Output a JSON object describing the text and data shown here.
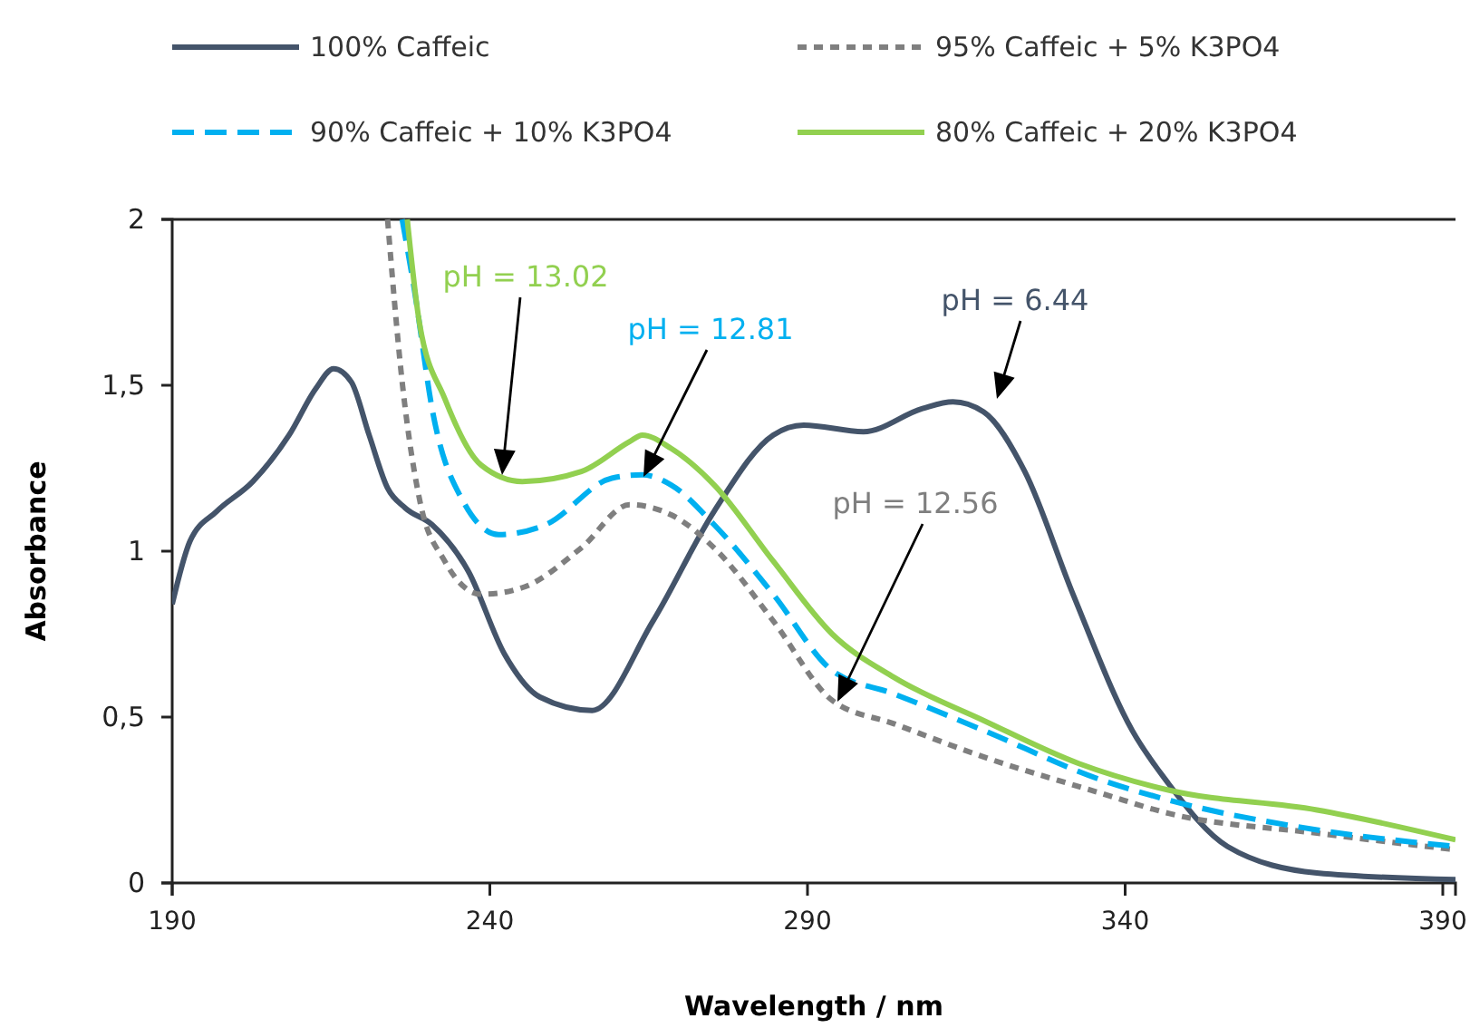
{
  "chart_data": {
    "type": "line",
    "xlabel": "Wavelength / nm",
    "ylabel": "Absorbance",
    "xlim": [
      190,
      392
    ],
    "xticks": [
      190,
      240,
      290,
      340,
      390
    ],
    "ylim": [
      0,
      2
    ],
    "yticks": [
      0,
      {
        "value": 0.5,
        "label": "0,5"
      },
      1,
      {
        "value": 1.5,
        "label": "1,5"
      },
      2
    ],
    "grid": false,
    "legend": "top",
    "marker": "none",
    "series": [
      {
        "name": "100% Caffeic",
        "color": "#44546a",
        "line_style": "solid",
        "x": [
          190,
          192.8,
          197,
          202.7,
          208.4,
          212.6,
          215.4,
          218.2,
          221,
          223.9,
          226.7,
          230.9,
          236.6,
          242.3,
          247.9,
          256.1,
          265.7,
          275.3,
          284.6,
          289.4,
          298.8,
          308.1,
          312.9,
          317.7,
          324.2,
          331.8,
          341.1,
          346.8,
          356.1,
          370.2,
          392
        ],
        "values": [
          0.84,
          1.03,
          1.12,
          1.21,
          1.35,
          1.49,
          1.55,
          1.51,
          1.35,
          1.19,
          1.13,
          1.08,
          0.94,
          0.69,
          0.56,
          0.52,
          0.79,
          1.12,
          1.35,
          1.38,
          1.36,
          1.43,
          1.45,
          1.42,
          1.24,
          0.87,
          0.46,
          0.3,
          0.11,
          0.03,
          0.01
        ]
      },
      {
        "name": "95% Caffeic + 5% K3PO4",
        "color": "#7f7f7f",
        "line_style": "dotted",
        "x": [
          223.9,
          226.2,
          229,
          232.9,
          238.6,
          245.1,
          254.4,
          262,
          268.5,
          275.3,
          284.6,
          293.9,
          303.6,
          317.7,
          336.3,
          346.8,
          370.2,
          392
        ],
        "values": [
          2.0,
          1.51,
          1.15,
          0.97,
          0.87,
          0.89,
          1.01,
          1.14,
          1.11,
          1.01,
          0.79,
          0.55,
          0.48,
          0.38,
          0.27,
          0.21,
          0.15,
          0.1
        ]
      },
      {
        "name": "90% Caffeic + 10% K3PO4",
        "color": "#00b0f0",
        "line_style": "dashed",
        "x": [
          226.2,
          228.1,
          231,
          235.8,
          241.4,
          248.8,
          259.2,
          264,
          268.5,
          275.3,
          284.6,
          293.9,
          303.6,
          317.7,
          336.3,
          346.8,
          370.2,
          392
        ],
        "values": [
          2.0,
          1.79,
          1.42,
          1.15,
          1.05,
          1.08,
          1.22,
          1.23,
          1.2,
          1.08,
          0.87,
          0.64,
          0.57,
          0.46,
          0.31,
          0.25,
          0.16,
          0.11
        ]
      },
      {
        "name": "80% Caffeic + 20% K3PO4",
        "color": "#92d050",
        "line_style": "solid",
        "x": [
          227,
          228.9,
          232.9,
          238.6,
          245.1,
          254.4,
          262,
          264,
          268.5,
          275.3,
          284.6,
          293.9,
          303.6,
          317.7,
          332.7,
          346.8,
          370.2,
          392
        ],
        "values": [
          2.0,
          1.69,
          1.46,
          1.26,
          1.21,
          1.24,
          1.33,
          1.35,
          1.31,
          1.2,
          0.97,
          0.75,
          0.62,
          0.49,
          0.36,
          0.28,
          0.22,
          0.13
        ]
      }
    ],
    "annotations": [
      "pH = 13.02",
      "pH = 12.81",
      "pH = 6.44",
      "pH = 12.56"
    ]
  }
}
